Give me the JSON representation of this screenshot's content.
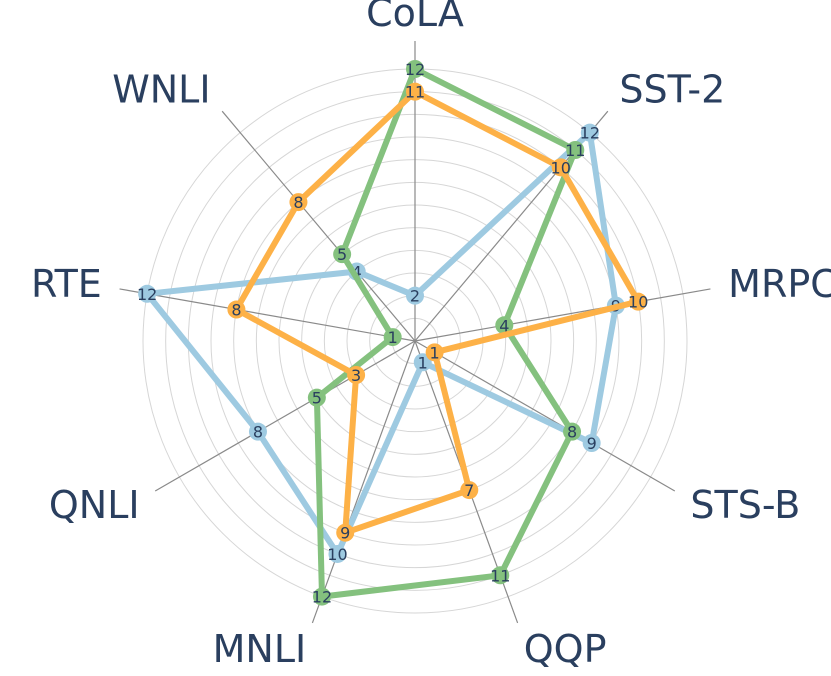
{
  "chart_data": {
    "type": "radar",
    "categories": [
      "CoLA",
      "SST-2",
      "MRPC",
      "STS-B",
      "QQP",
      "MNLI",
      "QNLI",
      "RTE",
      "WNLI"
    ],
    "rlim": [
      0,
      12
    ],
    "grid": true,
    "series": [
      {
        "color": "#9ecae1",
        "values": [
          2,
          12,
          9,
          9,
          1,
          10,
          8,
          12,
          4
        ]
      },
      {
        "color": "#84c17e",
        "values": [
          12,
          11,
          4,
          8,
          11,
          12,
          5,
          1,
          5
        ]
      },
      {
        "color": "#fdb147",
        "values": [
          11,
          10,
          10,
          1,
          7,
          9,
          3,
          8,
          8
        ]
      }
    ]
  }
}
